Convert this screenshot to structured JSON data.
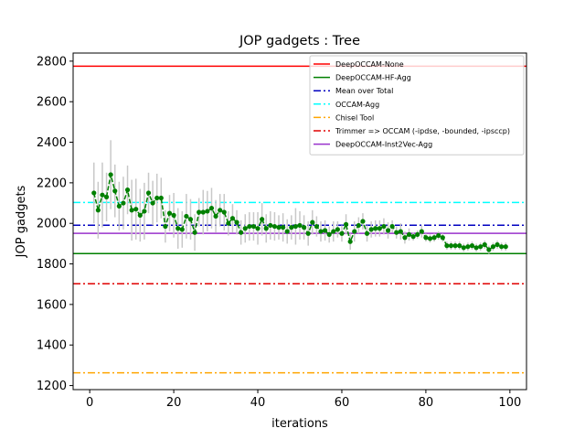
{
  "chart_data": {
    "type": "line",
    "title": "JOP gadgets : Tree",
    "xlabel": "iterations",
    "ylabel": "JOP gadgets",
    "xlim": [
      -3.95,
      103.95
    ],
    "ylim": [
      1180,
      2840
    ],
    "xticks": [
      0,
      20,
      40,
      60,
      80,
      100
    ],
    "yticks": [
      1200,
      1400,
      1600,
      1800,
      2000,
      2200,
      2400,
      2600,
      2800
    ],
    "grid": false,
    "legend_position": "top-right",
    "reference_lines": [
      {
        "name": "DeepOCCAM-None",
        "value": 2775,
        "color": "#ff0000",
        "style": "solid"
      },
      {
        "name": "DeepOCCAM-HF-Agg",
        "value": 1851,
        "color": "#008000",
        "style": "solid"
      },
      {
        "name": "Mean over Total",
        "value": 1991,
        "color": "#0000c0",
        "style": "dashdot"
      },
      {
        "name": "OCCAM-Agg",
        "value": 2103,
        "color": "#00ffff",
        "style": "dashdot"
      },
      {
        "name": "Chisel Tool",
        "value": 1263,
        "color": "#ffa500",
        "style": "dashdot"
      },
      {
        "name": "Trimmer => OCCAM (-ipdse, -bounded, -ipsccp)",
        "value": 1702,
        "color": "#e00000",
        "style": "dashdot"
      },
      {
        "name": "DeepOCCAM-Inst2Vec-Agg",
        "value": 1951,
        "color": "#9932cc",
        "style": "solid"
      }
    ],
    "series": [
      {
        "color": "#008000",
        "x": [
          1,
          2,
          3,
          4,
          5,
          6,
          7,
          8,
          9,
          10,
          11,
          12,
          13,
          14,
          15,
          16,
          17,
          18,
          19,
          20,
          21,
          22,
          23,
          24,
          25,
          26,
          27,
          28,
          29,
          30,
          31,
          32,
          33,
          34,
          35,
          36,
          37,
          38,
          39,
          40,
          41,
          42,
          43,
          44,
          45,
          46,
          47,
          48,
          49,
          50,
          51,
          52,
          53,
          54,
          55,
          56,
          57,
          58,
          59,
          60,
          61,
          62,
          63,
          64,
          65,
          66,
          67,
          68,
          69,
          70,
          71,
          72,
          73,
          74,
          75,
          76,
          77,
          78,
          79,
          80,
          81,
          82,
          83,
          84,
          85,
          86,
          87,
          88,
          89,
          90,
          91,
          92,
          93,
          94,
          95,
          96,
          97,
          98,
          99
        ],
        "values": [
          2150,
          2065,
          2140,
          2130,
          2240,
          2160,
          2085,
          2100,
          2165,
          2065,
          2070,
          2040,
          2060,
          2150,
          2100,
          2125,
          2125,
          1985,
          2050,
          2040,
          1975,
          1970,
          2035,
          2020,
          1955,
          2055,
          2055,
          2060,
          2075,
          2035,
          2065,
          2055,
          2000,
          2025,
          2005,
          1955,
          1975,
          1985,
          1985,
          1975,
          2020,
          1975,
          1990,
          1985,
          1980,
          1980,
          1960,
          1980,
          1985,
          1990,
          1980,
          1950,
          2005,
          1985,
          1960,
          1965,
          1945,
          1960,
          1970,
          1950,
          1995,
          1910,
          1960,
          1990,
          2010,
          1950,
          1970,
          1975,
          1975,
          1985,
          1965,
          1985,
          1955,
          1960,
          1930,
          1945,
          1935,
          1945,
          1960,
          1930,
          1925,
          1930,
          1940,
          1930,
          1890,
          1890,
          1890,
          1890,
          1880,
          1885,
          1890,
          1880,
          1885,
          1895,
          1870,
          1885,
          1895,
          1885,
          1885
        ],
        "error": [
          150,
          140,
          160,
          120,
          170,
          130,
          120,
          130,
          120,
          150,
          150,
          130,
          140,
          100,
          110,
          120,
          100,
          80,
          90,
          110,
          100,
          90,
          110,
          100,
          90,
          70,
          110,
          100,
          100,
          80,
          80,
          90,
          60,
          70,
          60,
          60,
          70,
          70,
          70,
          80,
          80,
          70,
          70,
          70,
          60,
          70,
          60,
          60,
          90,
          70,
          60,
          60,
          60,
          50,
          50,
          50,
          40,
          50,
          40,
          40,
          50,
          40,
          50,
          40,
          40,
          40,
          40,
          40,
          40,
          40,
          40,
          30,
          30,
          40,
          30,
          30,
          20,
          20,
          30,
          20,
          20,
          20,
          20,
          20,
          20,
          20,
          20,
          20,
          20,
          20,
          20,
          20,
          20,
          20,
          20,
          20,
          20,
          20,
          20
        ]
      }
    ]
  }
}
